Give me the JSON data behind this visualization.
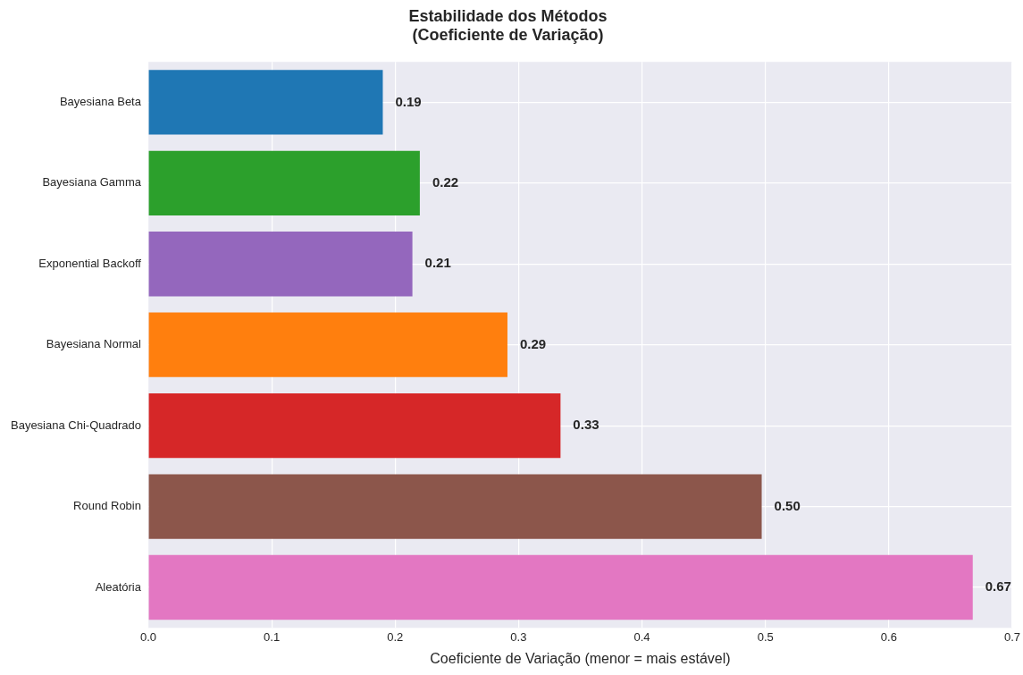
{
  "chart_data": {
    "type": "bar",
    "orientation": "horizontal",
    "title": "Estabilidade dos Métodos\n(Coeficiente de Variação)",
    "xlabel": "Coeficiente de Variação (menor = mais estável)",
    "categories": [
      "Bayesiana Beta",
      "Bayesiana Gamma",
      "Exponential Backoff",
      "Bayesiana Normal",
      "Bayesiana Chi-Quadrado",
      "Round Robin",
      "Aleatória"
    ],
    "values": [
      0.19,
      0.22,
      0.214,
      0.291,
      0.334,
      0.497,
      0.668
    ],
    "value_labels": [
      "0.19",
      "0.22",
      "0.21",
      "0.29",
      "0.33",
      "0.50",
      "0.67"
    ],
    "colors": [
      "#1f77b4",
      "#2ca02c",
      "#9467bd",
      "#ff7f0e",
      "#d62728",
      "#8c564b",
      "#e377c2"
    ],
    "xlim": [
      0,
      0.7
    ],
    "xticks": [
      {
        "value": 0,
        "label": "0.0"
      },
      0.1,
      0.2,
      0.3,
      0.4,
      0.5,
      0.6,
      0.7
    ],
    "grid": true
  }
}
